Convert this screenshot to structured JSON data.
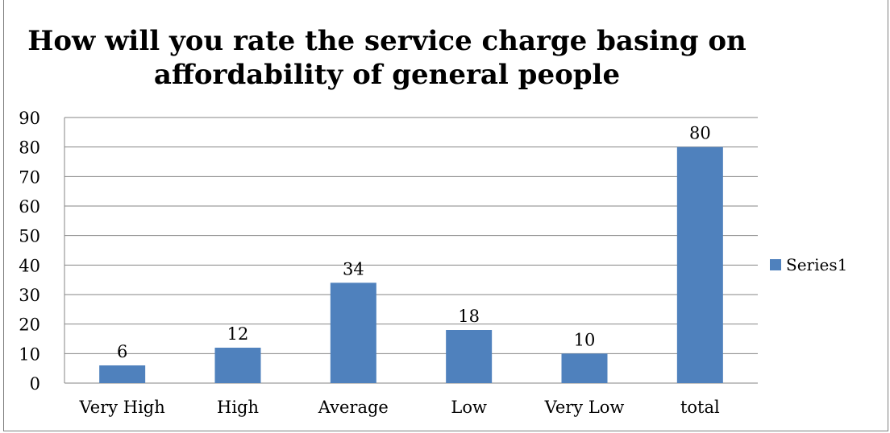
{
  "chart_data": {
    "type": "bar",
    "title_line1": "How will you rate the service charge basing on",
    "title_line2": "affordability of general people",
    "categories": [
      "Very High",
      "High",
      "Average",
      "Low",
      "Very Low",
      "total"
    ],
    "series": [
      {
        "name": "Series1",
        "values": [
          6,
          12,
          34,
          18,
          10,
          80
        ]
      }
    ],
    "ylim": [
      0,
      90
    ],
    "yticks": [
      0,
      10,
      20,
      30,
      40,
      50,
      60,
      70,
      80,
      90
    ],
    "grid": true,
    "legend": "right",
    "data_labels": true,
    "bar_color": "#4f81bd"
  }
}
